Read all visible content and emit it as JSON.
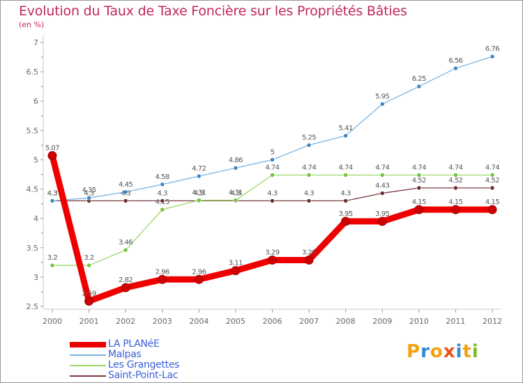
{
  "title": "Evolution du Taux de Taxe Foncière sur les Propriétés Bâties",
  "subtitle": "(en %)",
  "logo": {
    "text": "Proxiti",
    "letters": [
      "P",
      "r",
      "o",
      "x",
      "i",
      "t",
      "i"
    ],
    "colors": [
      "#f2a10f",
      "#2f8ad6",
      "#f2a10f",
      "#e8531f",
      "#2f8ad6",
      "#f2a10f",
      "#7ab829"
    ]
  },
  "chart_data": {
    "type": "line",
    "x": [
      2000,
      2001,
      2002,
      2003,
      2004,
      2005,
      2006,
      2007,
      2008,
      2009,
      2010,
      2011,
      2012
    ],
    "ylim": [
      2.5,
      7
    ],
    "yticks": [
      "2.5",
      "3",
      "3.5",
      "4",
      "4.5",
      "5",
      "5.5",
      "6",
      "6.5",
      "7"
    ],
    "grid": false,
    "legend_position": "bottom-left",
    "series": [
      {
        "name": "LA PLANéE",
        "color": "#ee0000",
        "marker": "#cc0000",
        "values": [
          5.07,
          2.59,
          2.82,
          2.96,
          2.96,
          3.11,
          3.29,
          3.29,
          3.95,
          3.95,
          4.15,
          4.15,
          4.15
        ],
        "labels": [
          "5.07",
          "2.59",
          "2.82",
          "2.96",
          "2.96",
          "3.11",
          "3.29",
          "3.29",
          "3.95",
          "3.95",
          "4.15",
          "4.15",
          "4.15"
        ]
      },
      {
        "name": "Malpas",
        "color": "#7ab4e0",
        "marker": "#3d86c6",
        "values": [
          4.3,
          4.35,
          4.45,
          4.58,
          4.72,
          4.86,
          5,
          5.25,
          5.41,
          5.95,
          6.25,
          6.56,
          6.76
        ],
        "labels": [
          "4.3",
          "4.35",
          "4.45",
          "4.58",
          "4.72",
          "4.86",
          "5",
          "5.25",
          "5.41",
          "5.95",
          "6.25",
          "6.56",
          "6.76"
        ]
      },
      {
        "name": "Les Grangettes",
        "color": "#9fd86a",
        "marker": "#72c13c",
        "values": [
          3.2,
          3.2,
          3.46,
          4.15,
          4.31,
          4.31,
          4.74,
          4.74,
          4.74,
          4.74,
          4.74,
          4.74,
          4.74
        ],
        "labels": [
          "3.2",
          "3.2",
          "3.46",
          "4.15",
          "4.31",
          "4.31",
          "4.74",
          "4.74",
          "4.74",
          "4.74",
          "4.74",
          "4.74",
          "4.74"
        ]
      },
      {
        "name": "Saint-Point-Lac",
        "color": "#7a3a40",
        "marker": "#6a2a30",
        "values": [
          4.3,
          4.3,
          4.3,
          4.3,
          4.3,
          4.3,
          4.3,
          4.3,
          4.3,
          4.43,
          4.52,
          4.52,
          4.52
        ],
        "labels": [
          "4.3",
          "4.3",
          "4.3",
          "4.3",
          "4.3",
          "4.3",
          "4.3",
          "4.3",
          "4.3",
          "4.43",
          "4.52",
          "4.52",
          "4.52"
        ]
      }
    ]
  }
}
